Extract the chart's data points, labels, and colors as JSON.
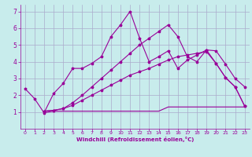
{
  "background_color": "#c8ecec",
  "grid_color": "#aaaacc",
  "line_color": "#990099",
  "marker": "*",
  "xlabel": "Windchill (Refroidissement éolien,°C)",
  "xlabel_color": "#990099",
  "tick_color": "#990099",
  "xlim": [
    -0.5,
    23.5
  ],
  "ylim": [
    0,
    7.4
  ],
  "yticks": [
    1,
    2,
    3,
    4,
    5,
    6,
    7
  ],
  "xticks": [
    0,
    1,
    2,
    3,
    4,
    5,
    6,
    7,
    8,
    9,
    10,
    11,
    12,
    13,
    14,
    15,
    16,
    17,
    18,
    19,
    20,
    21,
    22,
    23
  ],
  "line1_x": [
    2,
    3,
    4,
    5,
    6,
    7,
    8,
    9,
    10,
    11,
    12,
    13,
    14,
    15,
    16,
    17,
    18,
    19,
    20,
    21,
    22,
    23
  ],
  "line1_y": [
    0.95,
    1.05,
    1.05,
    1.05,
    1.05,
    1.05,
    1.05,
    1.05,
    1.05,
    1.05,
    1.05,
    1.05,
    1.05,
    1.3,
    1.3,
    1.3,
    1.3,
    1.3,
    1.3,
    1.3,
    1.3,
    1.3
  ],
  "line2_x": [
    2,
    3,
    4,
    5,
    6,
    7,
    8,
    9,
    10,
    11,
    12,
    13,
    14,
    15,
    16,
    17,
    18,
    19,
    20,
    21,
    22,
    23
  ],
  "line2_y": [
    1.05,
    1.1,
    1.2,
    1.4,
    1.7,
    2.0,
    2.3,
    2.6,
    2.9,
    3.2,
    3.4,
    3.6,
    3.85,
    4.1,
    4.3,
    4.4,
    4.5,
    4.6,
    3.9,
    3.05,
    2.5,
    1.35
  ],
  "line3_x": [
    0,
    1,
    2,
    3,
    4,
    5,
    6,
    7,
    8,
    9,
    10,
    11,
    12,
    13,
    14,
    15,
    16,
    17,
    18,
    19,
    20,
    21,
    22,
    23
  ],
  "line3_y": [
    2.4,
    1.8,
    0.95,
    2.1,
    2.7,
    3.6,
    3.6,
    3.9,
    4.3,
    5.5,
    6.2,
    7.0,
    5.4,
    4.0,
    4.3,
    4.65,
    3.6,
    4.1,
    4.4,
    4.7,
    3.9,
    3.05,
    2.5,
    1.35
  ],
  "line4_x": [
    2,
    3,
    4,
    5,
    6,
    7,
    8,
    9,
    10,
    11,
    12,
    13,
    14,
    15,
    16,
    17,
    18,
    19,
    20,
    21,
    22,
    23
  ],
  "line4_y": [
    1.05,
    1.1,
    1.2,
    1.55,
    2.0,
    2.5,
    3.0,
    3.5,
    4.0,
    4.5,
    5.0,
    5.4,
    5.8,
    6.2,
    5.5,
    4.3,
    4.0,
    4.7,
    4.65,
    3.85,
    3.0,
    2.5
  ]
}
